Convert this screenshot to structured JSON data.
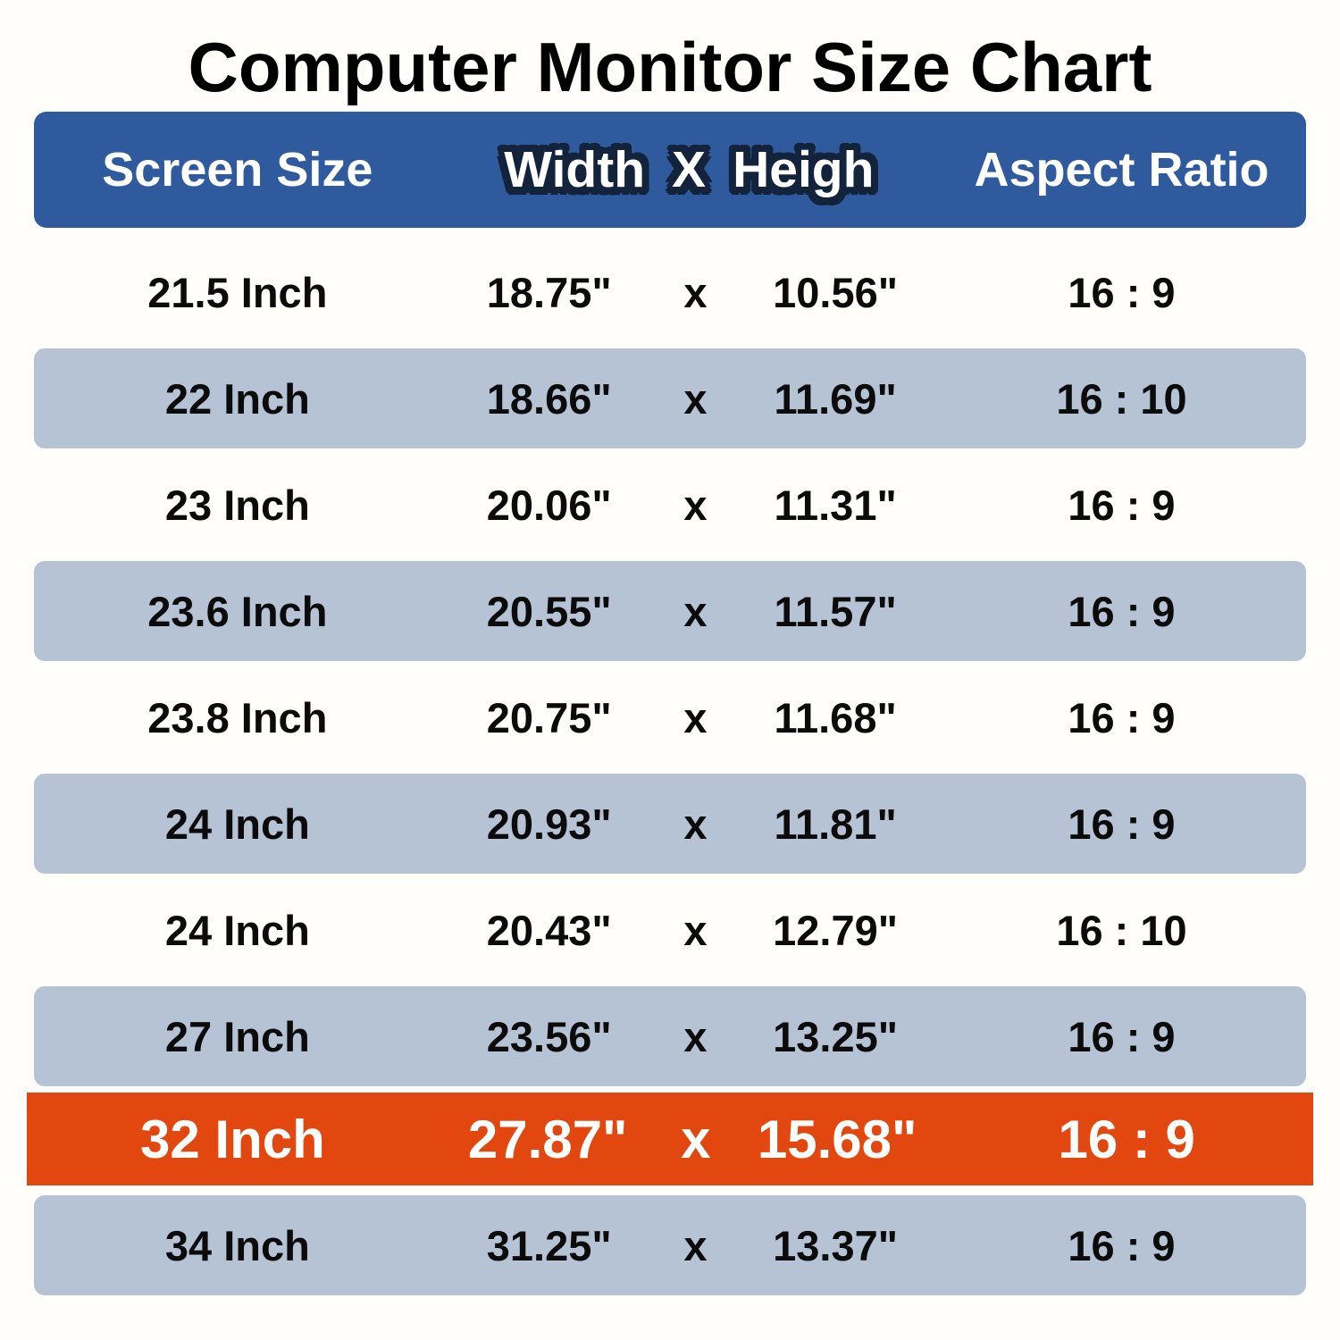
{
  "title": "Computer Monitor Size Chart",
  "colors": {
    "header_blue": "#2f5a9e",
    "outline_navy": "#14233c",
    "row_blue": "#b5c3d4",
    "row_orange": "#e1470f",
    "page_background": "#fffefa",
    "header_text": "#ffffff",
    "row_text": "#0b0b0b",
    "highlight_text": "#ffffff"
  },
  "header": {
    "screen_size": "Screen Size",
    "width_label": "Width",
    "x_label": "X",
    "height_label": "Heigh",
    "aspect_ratio": "Aspect Ratio"
  },
  "rows": [
    {
      "size": "21.5 Inch",
      "width": "18.75\"",
      "sep": "x",
      "height": "10.56\"",
      "aspect": "16 : 9",
      "variant": "white"
    },
    {
      "size": "22 Inch",
      "width": "18.66\"",
      "sep": "x",
      "height": "11.69\"",
      "aspect": "16 : 10",
      "variant": "blue"
    },
    {
      "size": "23 Inch",
      "width": "20.06\"",
      "sep": "x",
      "height": "11.31\"",
      "aspect": "16 : 9",
      "variant": "white"
    },
    {
      "size": "23.6 Inch",
      "width": "20.55\"",
      "sep": "x",
      "height": "11.57\"",
      "aspect": "16 : 9",
      "variant": "blue"
    },
    {
      "size": "23.8 Inch",
      "width": "20.75\"",
      "sep": "x",
      "height": "11.68\"",
      "aspect": "16 : 9",
      "variant": "white"
    },
    {
      "size": "24 Inch",
      "width": "20.93\"",
      "sep": "x",
      "height": "11.81\"",
      "aspect": "16 : 9",
      "variant": "blue"
    },
    {
      "size": "24 Inch",
      "width": "20.43\"",
      "sep": "x",
      "height": "12.79\"",
      "aspect": "16 : 10",
      "variant": "white"
    },
    {
      "size": "27 Inch",
      "width": "23.56\"",
      "sep": "x",
      "height": "13.25\"",
      "aspect": "16 : 9",
      "variant": "blue"
    },
    {
      "size": "32 Inch",
      "width": "27.87\"",
      "sep": "x",
      "height": "15.68\"",
      "aspect": "16 : 9",
      "variant": "orange"
    },
    {
      "size": "34 Inch",
      "width": "31.25\"",
      "sep": "x",
      "height": "13.37\"",
      "aspect": "16 : 9",
      "variant": "blue"
    }
  ],
  "chart_data": {
    "type": "table",
    "title": "Computer Monitor Size Chart",
    "columns": [
      "Screen Size",
      "Width (inches)",
      "Height (inches)",
      "Aspect Ratio"
    ],
    "rows": [
      [
        "21.5 Inch",
        18.75,
        10.56,
        "16:9"
      ],
      [
        "22 Inch",
        18.66,
        11.69,
        "16:10"
      ],
      [
        "23 Inch",
        20.06,
        11.31,
        "16:9"
      ],
      [
        "23.6 Inch",
        20.55,
        11.57,
        "16:9"
      ],
      [
        "23.8 Inch",
        20.75,
        11.68,
        "16:9"
      ],
      [
        "24 Inch",
        20.93,
        11.81,
        "16:9"
      ],
      [
        "24 Inch",
        20.43,
        12.79,
        "16:10"
      ],
      [
        "27 Inch",
        23.56,
        13.25,
        "16:9"
      ],
      [
        "32 Inch",
        27.87,
        15.68,
        "16:9"
      ],
      [
        "34 Inch",
        31.25,
        13.37,
        "16:9"
      ]
    ],
    "highlighted_row": "32 Inch",
    "layout": "striped rows; header bar blue; 32 Inch row highlighted orange"
  }
}
